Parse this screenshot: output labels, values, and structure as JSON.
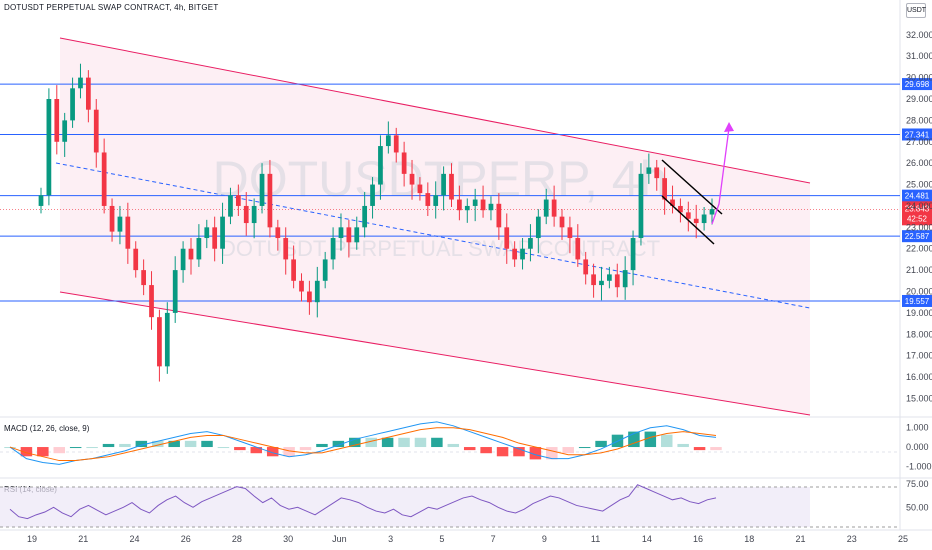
{
  "header": {
    "symbol": "DOTUSDT PERPETUAL SWAP CONTRACT, 4h, BITGET",
    "unit": "USDT"
  },
  "watermark": {
    "ticker": "DOTUSDTPERP, 4h",
    "description": "DOTUSDT PERPETUAL SWAP CONTRACT"
  },
  "chart_data": {
    "type": "candlestick",
    "price_axis": {
      "ticks": [
        "32.000",
        "31.000",
        "30.000",
        "29.000",
        "28.000",
        "27.000",
        "26.000",
        "25.000",
        "24.000",
        "23.000",
        "22.000",
        "21.000",
        "20.000",
        "19.000",
        "18.000",
        "17.000",
        "16.000",
        "15.000"
      ],
      "ylim": [
        14.6,
        32.6
      ]
    },
    "time_axis": {
      "ticks": [
        "19",
        "21",
        "24",
        "26",
        "28",
        "30",
        "Jun",
        "3",
        "5",
        "7",
        "9",
        "11",
        "14",
        "16",
        "18",
        "21",
        "23",
        "25"
      ]
    },
    "horizontal_levels": [
      {
        "value": 29.698,
        "label": "29.698",
        "color": "#2962ff"
      },
      {
        "value": 27.341,
        "label": "27.341",
        "color": "#2962ff"
      },
      {
        "value": 24.481,
        "label": "24.481",
        "color": "#2962ff"
      },
      {
        "value": 22.587,
        "label": "22.587",
        "color": "#2962ff"
      },
      {
        "value": 19.557,
        "label": "19.557",
        "color": "#2962ff"
      }
    ],
    "current_price": {
      "value": 23.843,
      "label": "23.843",
      "countdown": "42:52",
      "color": "#f23645"
    },
    "colors": {
      "up": "#089981",
      "down": "#f23645",
      "channel": "#e91e63",
      "fill": "#fce4ec",
      "arrow": "#e040fb"
    },
    "price_closes": [
      24.5,
      29.0,
      27.0,
      28.0,
      29.5,
      30.0,
      28.5,
      26.5,
      24.0,
      22.8,
      23.5,
      22.0,
      21.0,
      20.3,
      18.8,
      16.5,
      19.0,
      21.0,
      22.0,
      21.5,
      22.5,
      23.0,
      22.0,
      23.5,
      24.5,
      24.0,
      23.2,
      24.0,
      25.5,
      23.0,
      22.5,
      21.5,
      20.5,
      20.0,
      19.5,
      20.5,
      21.5,
      22.5,
      23.0,
      22.3,
      23.0,
      24.0,
      25.0,
      26.8,
      27.3,
      26.5,
      25.5,
      25.0,
      24.6,
      24.0,
      24.5,
      25.5,
      24.3,
      23.8,
      24.0,
      24.3,
      23.8,
      24.1,
      23.0,
      22.0,
      21.5,
      22.0,
      22.5,
      23.5,
      24.3,
      23.5,
      23.0,
      22.5,
      21.5,
      20.8,
      20.3,
      20.5,
      20.8,
      20.2,
      21.0,
      22.5,
      25.5,
      25.8,
      25.3,
      24.3,
      24.0,
      23.7,
      23.4,
      23.2,
      23.6,
      23.85
    ],
    "macd": {
      "label": "MACD (12, 26, close, 9)",
      "ticks": [
        "1.000",
        "0.000",
        "-1.000"
      ],
      "ylim": [
        -1.5,
        1.4
      ],
      "macd_line": [
        0.0,
        -0.6,
        -0.8,
        -0.9,
        -0.7,
        -0.6,
        -0.4,
        -0.2,
        0.1,
        0.3,
        0.5,
        0.7,
        0.8,
        0.6,
        0.3,
        0.0,
        -0.3,
        -0.5,
        -0.4,
        -0.2,
        0.1,
        0.4,
        0.6,
        0.8,
        1.0,
        1.2,
        1.3,
        1.1,
        0.8,
        0.5,
        0.2,
        -0.1,
        -0.4,
        -0.6,
        -0.6,
        -0.4,
        -0.1,
        0.3,
        0.7,
        1.0,
        1.1,
        0.9,
        0.6,
        0.5
      ],
      "signal_line": [
        0.0,
        -0.3,
        -0.5,
        -0.7,
        -0.7,
        -0.6,
        -0.5,
        -0.3,
        -0.1,
        0.1,
        0.3,
        0.5,
        0.6,
        0.6,
        0.4,
        0.2,
        0.0,
        -0.2,
        -0.3,
        -0.3,
        -0.1,
        0.1,
        0.3,
        0.5,
        0.7,
        0.9,
        1.0,
        1.0,
        0.9,
        0.7,
        0.5,
        0.2,
        0.0,
        -0.2,
        -0.4,
        -0.4,
        -0.3,
        -0.1,
        0.2,
        0.5,
        0.7,
        0.8,
        0.7,
        0.6
      ]
    },
    "rsi": {
      "label": "RSI (14, close)",
      "ticks": [
        "75.00",
        "50.00"
      ],
      "ylim": [
        28,
        78
      ],
      "bands": [
        70,
        30
      ],
      "values": [
        48,
        40,
        38,
        42,
        45,
        50,
        44,
        40,
        48,
        52,
        47,
        42,
        46,
        50,
        55,
        48,
        44,
        52,
        58,
        62,
        55,
        50,
        56,
        60,
        64,
        68,
        72,
        70,
        62,
        55,
        60,
        52,
        48,
        50,
        46,
        42,
        48,
        54,
        60,
        58,
        55,
        50,
        46,
        44,
        48,
        42,
        40,
        45,
        50,
        48,
        52,
        56,
        60,
        62,
        58,
        55,
        50,
        46,
        44,
        48,
        54,
        58,
        62,
        60,
        56,
        52,
        50,
        48,
        46,
        52,
        58,
        62,
        74,
        70,
        66,
        62,
        58,
        60,
        56,
        54,
        58,
        60
      ]
    }
  }
}
